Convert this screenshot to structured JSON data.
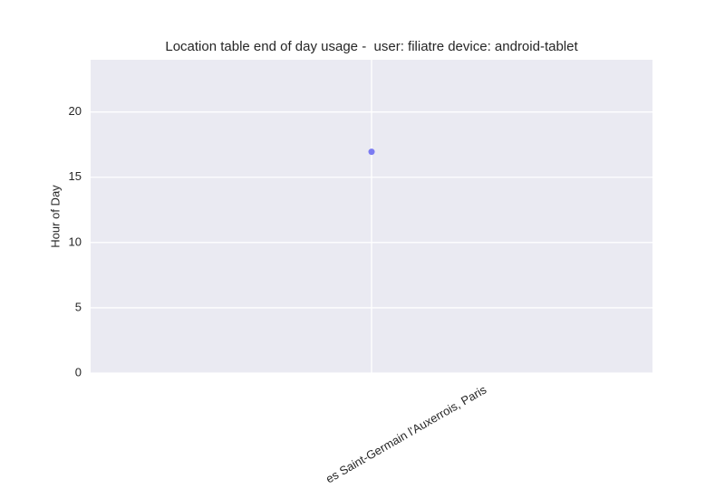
{
  "chart_data": {
    "type": "scatter",
    "title": "Location table end of day usage -  user: filiatre device: android-tablet",
    "y_label": "Hour of Day",
    "categories": [
      "es Saint-Germain l'Auxerrois, Paris"
    ],
    "values": [
      16.95
    ],
    "color": "#7b7bf2",
    "ylim": [
      0,
      24
    ],
    "yticks": [
      0,
      5,
      10,
      15,
      20
    ],
    "grid": true
  }
}
